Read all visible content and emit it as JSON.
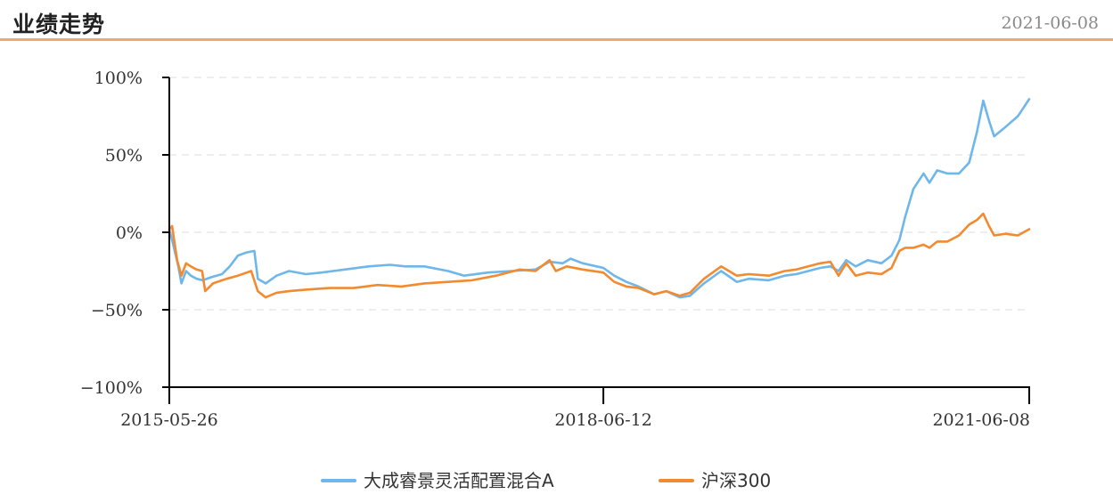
{
  "header": {
    "title": "业绩走势",
    "date": "2021-06-08"
  },
  "colors": {
    "fund": "#6fb7ea",
    "index": "#f28a30",
    "header_rule": "#f5a76a",
    "grid": "#dddddd",
    "axis": "#000000"
  },
  "chart_data": {
    "type": "line",
    "title": "",
    "xlabel": "",
    "ylabel": "",
    "ylim": [
      -100,
      100
    ],
    "y_ticks": [
      100,
      50,
      0,
      -50,
      -100
    ],
    "y_tick_labels": [
      "100%",
      "50%",
      "0%",
      "−50%",
      "−100%"
    ],
    "x_range": [
      "2015-05-26",
      "2021-06-08"
    ],
    "x_ticks": [
      "2015-05-26",
      "2018-06-12",
      "2021-06-08"
    ],
    "grid": "horizontal dashed",
    "legend_position": "bottom",
    "series": [
      {
        "name": "大成睿景灵活配置混合A",
        "color": "#6fb7ea",
        "points": [
          [
            "2015-05-26",
            2
          ],
          [
            "2015-06-05",
            -8
          ],
          [
            "2015-06-18",
            -22
          ],
          [
            "2015-06-26",
            -33
          ],
          [
            "2015-07-08",
            -25
          ],
          [
            "2015-07-20",
            -28
          ],
          [
            "2015-08-04",
            -30
          ],
          [
            "2015-08-20",
            -31
          ],
          [
            "2015-09-10",
            -29
          ],
          [
            "2015-10-08",
            -27
          ],
          [
            "2015-10-28",
            -22
          ],
          [
            "2015-11-18",
            -15
          ],
          [
            "2015-12-10",
            -13
          ],
          [
            "2015-12-30",
            -12
          ],
          [
            "2016-01-08",
            -30
          ],
          [
            "2016-01-28",
            -33
          ],
          [
            "2016-02-25",
            -28
          ],
          [
            "2016-03-28",
            -25
          ],
          [
            "2016-05-10",
            -27
          ],
          [
            "2016-06-20",
            -26
          ],
          [
            "2016-08-18",
            -24
          ],
          [
            "2016-10-18",
            -22
          ],
          [
            "2016-12-12",
            -21
          ],
          [
            "2017-01-20",
            -22
          ],
          [
            "2017-03-10",
            -22
          ],
          [
            "2017-05-10",
            -25
          ],
          [
            "2017-06-20",
            -28
          ],
          [
            "2017-08-20",
            -26
          ],
          [
            "2017-10-20",
            -25
          ],
          [
            "2017-12-20",
            -24
          ],
          [
            "2018-01-25",
            -19
          ],
          [
            "2018-02-28",
            -20
          ],
          [
            "2018-03-20",
            -17
          ],
          [
            "2018-04-20",
            -20
          ],
          [
            "2018-06-12",
            -23
          ],
          [
            "2018-07-10",
            -28
          ],
          [
            "2018-08-10",
            -32
          ],
          [
            "2018-09-10",
            -35
          ],
          [
            "2018-10-20",
            -40
          ],
          [
            "2018-11-20",
            -38
          ],
          [
            "2018-12-25",
            -42
          ],
          [
            "2019-01-20",
            -41
          ],
          [
            "2019-02-25",
            -33
          ],
          [
            "2019-04-10",
            -25
          ],
          [
            "2019-05-20",
            -32
          ],
          [
            "2019-06-20",
            -30
          ],
          [
            "2019-08-10",
            -31
          ],
          [
            "2019-09-20",
            -28
          ],
          [
            "2019-10-20",
            -27
          ],
          [
            "2019-12-20",
            -23
          ],
          [
            "2020-01-15",
            -22
          ],
          [
            "2020-02-05",
            -25
          ],
          [
            "2020-02-25",
            -18
          ],
          [
            "2020-03-20",
            -22
          ],
          [
            "2020-04-20",
            -18
          ],
          [
            "2020-05-25",
            -20
          ],
          [
            "2020-06-20",
            -15
          ],
          [
            "2020-07-10",
            -5
          ],
          [
            "2020-07-25",
            10
          ],
          [
            "2020-08-15",
            28
          ],
          [
            "2020-09-10",
            38
          ],
          [
            "2020-09-25",
            32
          ],
          [
            "2020-10-15",
            40
          ],
          [
            "2020-11-10",
            38
          ],
          [
            "2020-12-10",
            38
          ],
          [
            "2021-01-05",
            45
          ],
          [
            "2021-01-25",
            65
          ],
          [
            "2021-02-10",
            85
          ],
          [
            "2021-02-25",
            72
          ],
          [
            "2021-03-10",
            62
          ],
          [
            "2021-04-08",
            68
          ],
          [
            "2021-05-10",
            75
          ],
          [
            "2021-06-08",
            86
          ]
        ]
      },
      {
        "name": "沪深300",
        "color": "#f28a30",
        "points": [
          [
            "2015-05-26",
            2
          ],
          [
            "2015-06-02",
            4
          ],
          [
            "2015-06-15",
            -18
          ],
          [
            "2015-06-26",
            -28
          ],
          [
            "2015-07-08",
            -20
          ],
          [
            "2015-07-20",
            -22
          ],
          [
            "2015-08-04",
            -24
          ],
          [
            "2015-08-18",
            -25
          ],
          [
            "2015-08-26",
            -38
          ],
          [
            "2015-09-15",
            -33
          ],
          [
            "2015-10-20",
            -30
          ],
          [
            "2015-11-18",
            -28
          ],
          [
            "2015-12-22",
            -25
          ],
          [
            "2016-01-08",
            -38
          ],
          [
            "2016-01-28",
            -42
          ],
          [
            "2016-02-25",
            -39
          ],
          [
            "2016-03-28",
            -38
          ],
          [
            "2016-05-10",
            -37
          ],
          [
            "2016-07-10",
            -36
          ],
          [
            "2016-09-10",
            -36
          ],
          [
            "2016-11-10",
            -34
          ],
          [
            "2017-01-10",
            -35
          ],
          [
            "2017-03-10",
            -33
          ],
          [
            "2017-05-10",
            -32
          ],
          [
            "2017-07-10",
            -31
          ],
          [
            "2017-09-10",
            -28
          ],
          [
            "2017-11-10",
            -24
          ],
          [
            "2017-12-20",
            -25
          ],
          [
            "2018-01-25",
            -18
          ],
          [
            "2018-02-10",
            -25
          ],
          [
            "2018-03-10",
            -22
          ],
          [
            "2018-04-20",
            -24
          ],
          [
            "2018-06-12",
            -26
          ],
          [
            "2018-07-10",
            -32
          ],
          [
            "2018-08-10",
            -35
          ],
          [
            "2018-09-10",
            -36
          ],
          [
            "2018-10-20",
            -40
          ],
          [
            "2018-11-20",
            -38
          ],
          [
            "2018-12-25",
            -41
          ],
          [
            "2019-01-20",
            -39
          ],
          [
            "2019-02-25",
            -30
          ],
          [
            "2019-04-10",
            -22
          ],
          [
            "2019-05-20",
            -28
          ],
          [
            "2019-06-20",
            -27
          ],
          [
            "2019-08-10",
            -28
          ],
          [
            "2019-09-20",
            -25
          ],
          [
            "2019-10-20",
            -24
          ],
          [
            "2019-12-20",
            -20
          ],
          [
            "2020-01-15",
            -19
          ],
          [
            "2020-02-05",
            -28
          ],
          [
            "2020-02-25",
            -20
          ],
          [
            "2020-03-20",
            -28
          ],
          [
            "2020-04-20",
            -26
          ],
          [
            "2020-05-25",
            -27
          ],
          [
            "2020-06-20",
            -23
          ],
          [
            "2020-07-10",
            -12
          ],
          [
            "2020-07-25",
            -10
          ],
          [
            "2020-08-15",
            -10
          ],
          [
            "2020-09-10",
            -8
          ],
          [
            "2020-09-25",
            -10
          ],
          [
            "2020-10-15",
            -6
          ],
          [
            "2020-11-10",
            -6
          ],
          [
            "2020-12-10",
            -2
          ],
          [
            "2021-01-05",
            5
          ],
          [
            "2021-01-25",
            8
          ],
          [
            "2021-02-10",
            12
          ],
          [
            "2021-02-25",
            4
          ],
          [
            "2021-03-10",
            -2
          ],
          [
            "2021-04-08",
            -1
          ],
          [
            "2021-05-10",
            -2
          ],
          [
            "2021-06-08",
            2
          ]
        ]
      }
    ]
  }
}
